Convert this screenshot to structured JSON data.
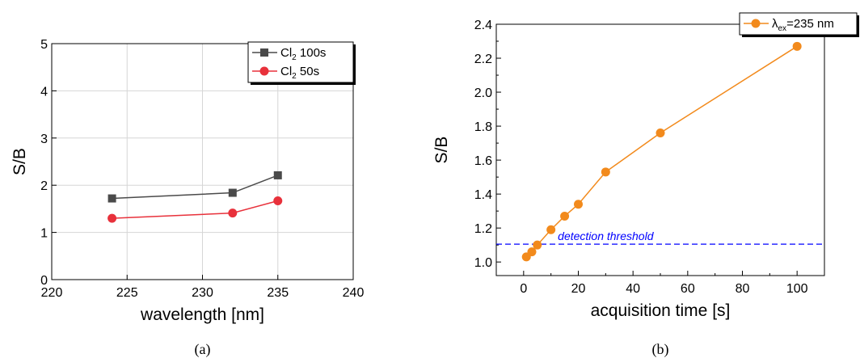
{
  "chart_data": [
    {
      "type": "line",
      "caption": "(a)",
      "xlabel": "wavelength [nm]",
      "ylabel": "S/B",
      "xlim": [
        220,
        240
      ],
      "ylim": [
        0,
        5
      ],
      "xticks": [
        220,
        225,
        230,
        235,
        240
      ],
      "yticks": [
        0,
        1,
        2,
        3,
        4,
        5
      ],
      "grid": true,
      "legend_position": "top-right",
      "series": [
        {
          "name": "Cl",
          "name_sub": "2",
          "name_suffix": "100s",
          "marker": "square",
          "color": "#4a4a4a",
          "x": [
            224,
            232,
            235
          ],
          "y": [
            1.72,
            1.84,
            2.21
          ]
        },
        {
          "name": "Cl",
          "name_sub": "2",
          "name_suffix": "50s",
          "marker": "circle",
          "color": "#e8313b",
          "x": [
            224,
            232,
            235
          ],
          "y": [
            1.3,
            1.41,
            1.67
          ]
        }
      ]
    },
    {
      "type": "line",
      "caption": "(b)",
      "xlabel": "acquisition time [s]",
      "ylabel": "S/B",
      "xlim": [
        -10,
        110
      ],
      "ylim": [
        0.92,
        2.4
      ],
      "xticks": [
        0,
        20,
        40,
        60,
        80,
        100
      ],
      "yticks": [
        1.0,
        1.2,
        1.4,
        1.6,
        1.8,
        2.0,
        2.2,
        2.4
      ],
      "grid": false,
      "legend_position": "top-right",
      "series": [
        {
          "name": "λ",
          "name_sub": "ex",
          "name_suffix": "=235 nm",
          "marker": "circle",
          "color": "#f28a1c",
          "x": [
            1,
            3,
            5,
            10,
            15,
            20,
            30,
            50,
            100
          ],
          "y": [
            1.03,
            1.06,
            1.1,
            1.19,
            1.27,
            1.34,
            1.53,
            1.76,
            2.27
          ]
        }
      ],
      "threshold": {
        "y": 1.105,
        "label": "detection threshold",
        "color": "#0000ff"
      }
    }
  ]
}
